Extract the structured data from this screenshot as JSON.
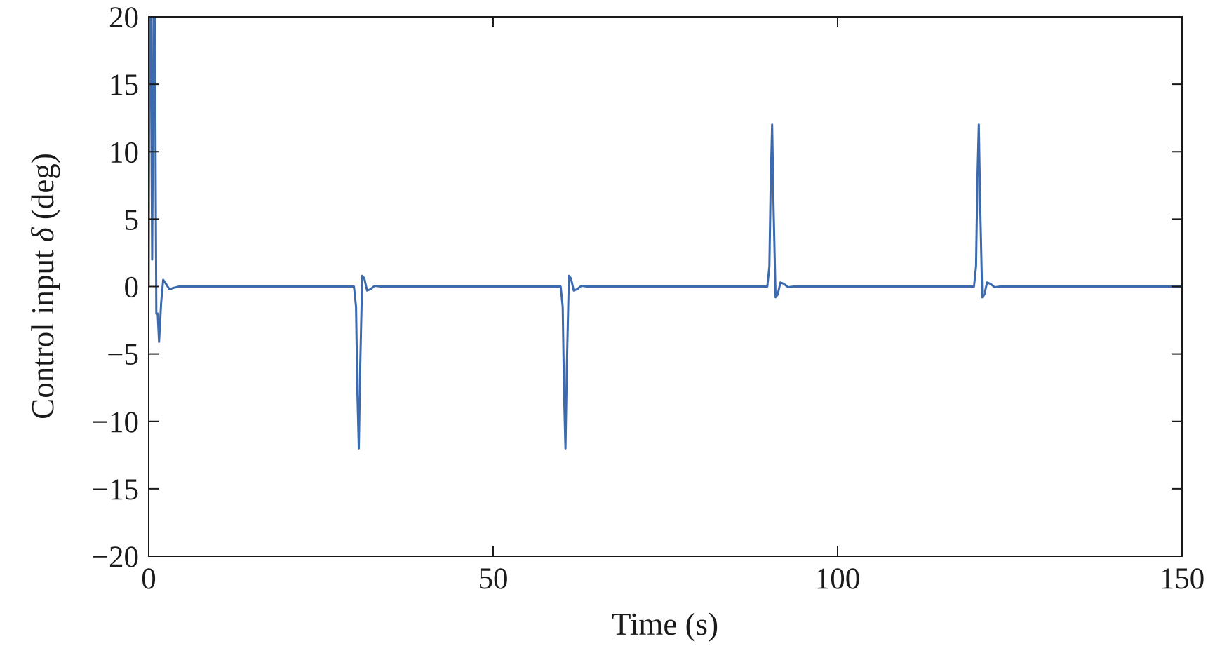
{
  "chart_data": {
    "type": "line",
    "title": "",
    "xlabel": "Time (s)",
    "ylabel_prefix": "Control input ",
    "ylabel_symbol": "δ",
    "ylabel_suffix": " (deg)",
    "xlim": [
      0,
      150
    ],
    "ylim": [
      -20,
      20
    ],
    "xticks": [
      0,
      50,
      100,
      150
    ],
    "yticks": [
      -20,
      -15,
      -10,
      -5,
      0,
      5,
      10,
      15,
      20
    ],
    "grid": false,
    "legend": "none",
    "series": [
      {
        "color": "#3b6aae",
        "x": [
          0,
          0.1,
          0.3,
          0.5,
          0.7,
          0.9,
          1.1,
          1.3,
          1.5,
          1.8,
          2.1,
          2.5,
          3.0,
          3.6,
          4.4,
          5.5,
          29.8,
          30.1,
          30.3,
          30.5,
          30.7,
          31.0,
          31.3,
          31.7,
          32.2,
          32.8,
          33.6,
          35.0,
          59.8,
          60.1,
          60.3,
          60.5,
          60.7,
          61.0,
          61.3,
          61.7,
          62.2,
          62.8,
          63.6,
          65.0,
          89.8,
          90.1,
          90.3,
          90.5,
          90.7,
          91.0,
          91.3,
          91.7,
          92.2,
          92.8,
          93.6,
          95.0,
          119.8,
          120.1,
          120.3,
          120.5,
          120.7,
          121.0,
          121.3,
          121.7,
          122.2,
          122.8,
          123.6,
          125.0,
          150
        ],
        "y": [
          0,
          20,
          20,
          2,
          20,
          20,
          -2,
          -2,
          -4.1,
          -1.2,
          0.5,
          0.2,
          -0.2,
          -0.1,
          0,
          0,
          0,
          -1.5,
          -8,
          -12,
          -6,
          0.8,
          0.6,
          -0.3,
          -0.2,
          0.05,
          0,
          0,
          0,
          -1.5,
          -8,
          -12,
          -6,
          0.8,
          0.6,
          -0.3,
          -0.2,
          0.05,
          0,
          0,
          0,
          1.5,
          8,
          12,
          6,
          -0.8,
          -0.6,
          0.3,
          0.2,
          -0.05,
          0,
          0,
          0,
          1.5,
          8,
          12,
          6,
          -0.8,
          -0.6,
          0.3,
          0.2,
          -0.05,
          0,
          0,
          0
        ]
      }
    ]
  }
}
